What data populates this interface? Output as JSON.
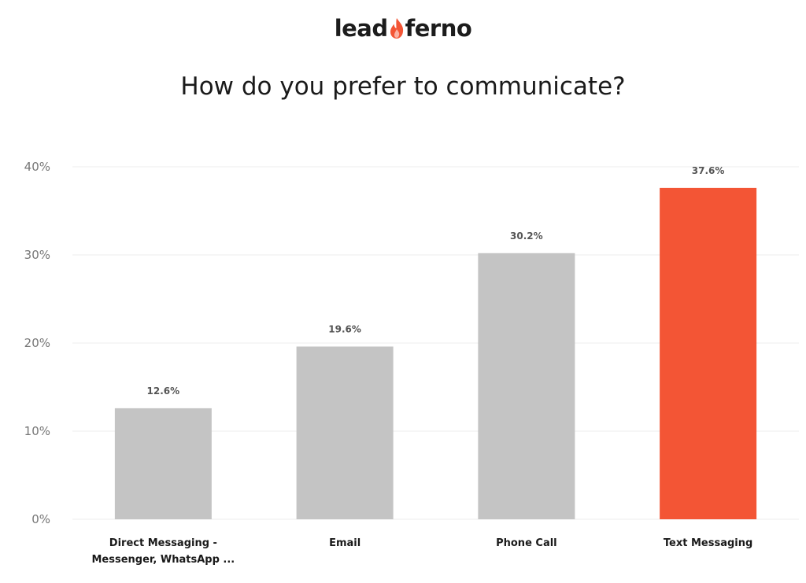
{
  "logo": {
    "left": "lead",
    "right": "ferno",
    "flame_color": "#f35535"
  },
  "chart_data": {
    "type": "bar",
    "title": "How do you prefer to communicate?",
    "xlabel": "",
    "ylabel": "",
    "ylim": [
      0,
      40
    ],
    "yticks": [
      {
        "value": 0,
        "label": "0%"
      },
      {
        "value": 10,
        "label": "10%"
      },
      {
        "value": 20,
        "label": "20%"
      },
      {
        "value": 30,
        "label": "30%"
      },
      {
        "value": 40,
        "label": "40%"
      }
    ],
    "grid": true,
    "categories": [
      [
        "Direct Messaging -",
        "Messenger, WhatsApp ..."
      ],
      [
        "Email"
      ],
      [
        "Phone Call"
      ],
      [
        "Text Messaging"
      ]
    ],
    "values": [
      12.6,
      19.6,
      30.2,
      37.6
    ],
    "data_labels": [
      "12.6%",
      "19.6%",
      "30.2%",
      "37.6%"
    ],
    "colors": [
      "#c4c4c4",
      "#c4c4c4",
      "#c4c4c4",
      "#f35535"
    ],
    "gridline_color": "#ececec"
  }
}
